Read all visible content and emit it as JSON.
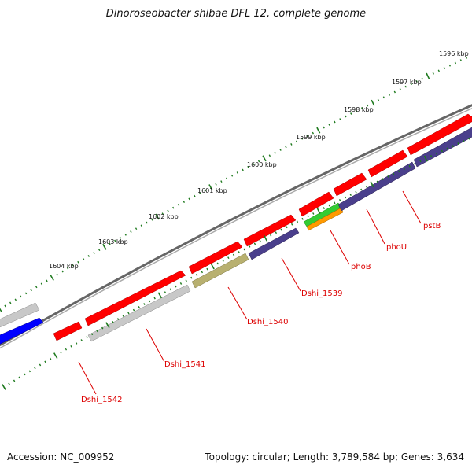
{
  "title": "Dinoroseobacter shibae DFL 12, complete genome",
  "accession": "Accession: NC_009952",
  "summary": "Topology: circular; Length: 3,789,584 bp; Genes: 3,634",
  "scale_labels": [
    "1596 kbp",
    "1597 kbp",
    "1598 kbp",
    "1599 kbp",
    "1600 kbp",
    "1601 kbp",
    "1602 kbp",
    "1603 kbp",
    "1604 kbp"
  ],
  "gene_labels": [
    "pstB",
    "phoU",
    "phoB",
    "Dshi_1539",
    "Dshi_1540",
    "Dshi_1541",
    "Dshi_1542"
  ],
  "colors": {
    "forward_gene": "#ff0000",
    "reverse_gene": "#4a3f8c",
    "gray_gene": "#c8c8c8",
    "olive_gene": "#b8b070",
    "blue_gene": "#0000ff",
    "green_gene": "#33cc33",
    "orange_gene": "#ff9900",
    "backbone": "#777777",
    "ticks": "#1e7a1e",
    "label": "#dd0000"
  }
}
